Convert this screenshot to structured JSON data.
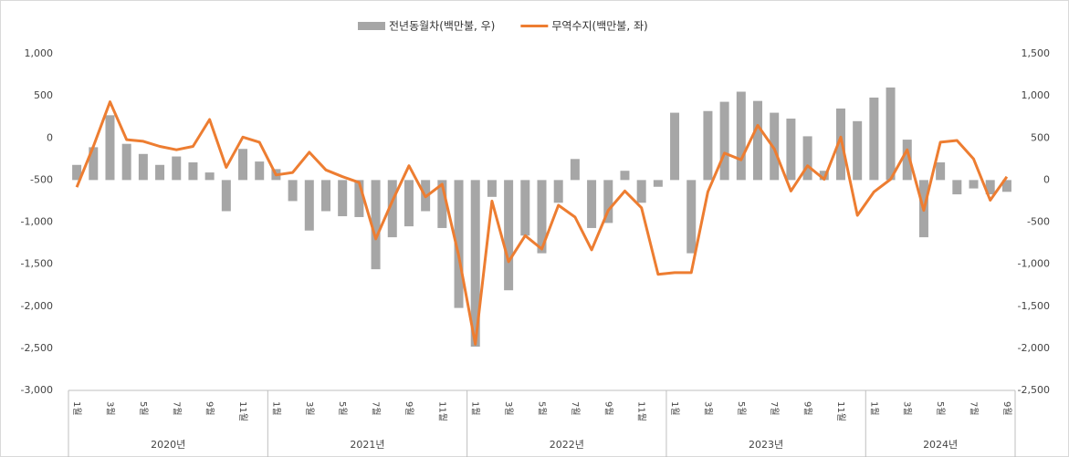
{
  "chart_data": {
    "type": "bar-line",
    "categories": [
      "1월",
      null,
      "3월",
      null,
      "5월",
      null,
      "7월",
      null,
      "9월",
      null,
      "11월",
      null,
      "1월",
      null,
      "3월",
      null,
      "5월",
      null,
      "7월",
      null,
      "9월",
      null,
      "11월",
      null,
      "1월",
      null,
      "3월",
      null,
      "5월",
      null,
      "7월",
      null,
      "9월",
      null,
      "11월",
      null,
      "1월",
      null,
      "3월",
      null,
      "5월",
      null,
      "7월",
      null,
      "9월",
      null,
      "11월",
      null,
      "1월",
      null,
      "3월",
      null,
      "5월",
      null,
      "7월",
      null,
      "9월"
    ],
    "year_groups": [
      "2020년",
      "2021년",
      "2022년",
      "2023년",
      "2024년"
    ],
    "series": [
      {
        "name": "전년동월차(백만불, 우)",
        "type": "bar",
        "axis": "y2",
        "color": "#a6a6a6",
        "values": [
          180,
          390,
          770,
          430,
          310,
          180,
          280,
          210,
          90,
          -370,
          370,
          220,
          130,
          -250,
          -600,
          -370,
          -430,
          -440,
          -1060,
          -680,
          -550,
          -370,
          -570,
          -1520,
          -1980,
          -200,
          -1310,
          -660,
          -870,
          -270,
          250,
          -570,
          -510,
          110,
          -270,
          -80,
          800,
          -870,
          820,
          930,
          1050,
          940,
          800,
          730,
          520,
          110,
          850,
          700,
          980,
          1100,
          480,
          -680,
          210,
          -170,
          -100,
          -170,
          -140
        ]
      },
      {
        "name": "무역수지(백만불, 좌)",
        "type": "line",
        "axis": "y",
        "color": "#ed7d31",
        "values": [
          -585,
          -100,
          430,
          -20,
          -40,
          -100,
          -140,
          -100,
          220,
          -350,
          10,
          -50,
          -440,
          -410,
          -170,
          -380,
          -460,
          -530,
          -1200,
          -750,
          -330,
          -700,
          -550,
          -1400,
          -2450,
          -750,
          -1470,
          -1160,
          -1320,
          -800,
          -940,
          -1330,
          -860,
          -630,
          -830,
          -1620,
          -1600,
          -1600,
          -640,
          -180,
          -260,
          150,
          -130,
          -630,
          -330,
          -490,
          10,
          -920,
          -640,
          -490,
          -140,
          -860,
          -50,
          -30,
          -250,
          -740,
          -460
        ]
      }
    ],
    "ylim": [
      -3000,
      1000
    ],
    "yticks": [
      {
        "value": -3000,
        "label": "-3,000"
      },
      {
        "value": -2500,
        "label": "-2,500"
      },
      {
        "value": -2000,
        "label": "-2,000"
      },
      {
        "value": -1500,
        "label": "-1,500"
      },
      {
        "value": -1000,
        "label": "-1,000"
      },
      -500,
      0,
      500,
      {
        "value": 1000,
        "label": "1,000"
      }
    ],
    "y2lim": [
      -2500,
      1500
    ],
    "y2ticks": [
      {
        "value": -2500,
        "label": "-2,500"
      },
      {
        "value": -2000,
        "label": "-2,000"
      },
      {
        "value": -1500,
        "label": "-1,500"
      },
      {
        "value": -1000,
        "label": "-1,000"
      },
      -500,
      0,
      500,
      {
        "value": 1000,
        "label": "1,000"
      },
      {
        "value": 1500,
        "label": "1,500"
      }
    ]
  }
}
